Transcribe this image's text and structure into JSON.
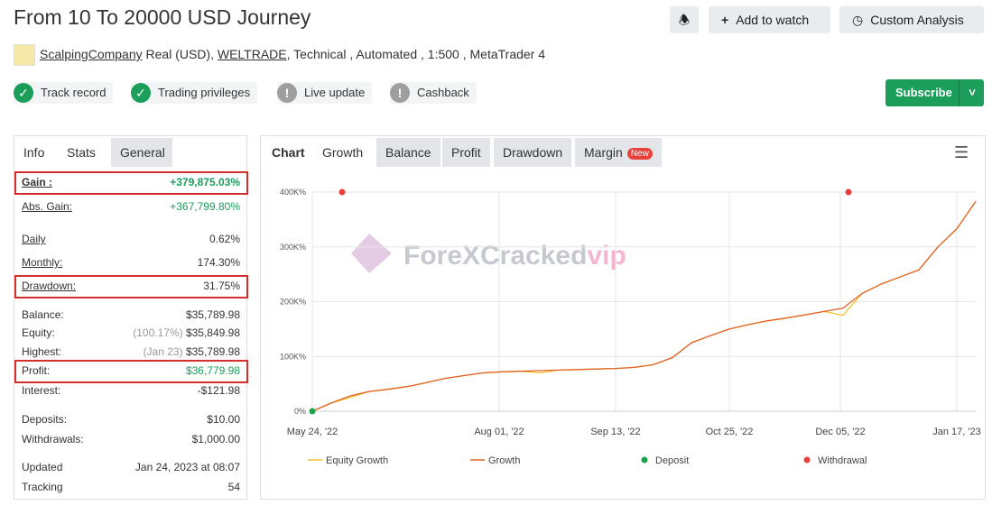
{
  "header": {
    "title": "From 10 To 20000 USD Journey",
    "buttons": [
      "Add to watch",
      "Custom Analysis"
    ]
  },
  "meta": {
    "author": "ScalpingCompany",
    "account": "Real (USD),",
    "broker": "WELTRADE",
    "details": ", Technical , Automated , 1:500 , MetaTrader 4"
  },
  "badges": [
    {
      "text": "Track record",
      "status": "ok"
    },
    {
      "text": "Trading privileges",
      "status": "ok"
    },
    {
      "text": "Live update",
      "status": "warn"
    },
    {
      "text": "Cashback",
      "status": "warn"
    }
  ],
  "subscribe": "Subscribe",
  "stats": {
    "tabs": [
      "Info",
      "Stats",
      "General"
    ],
    "rows": [
      {
        "label": "Gain :",
        "value": "+379,875.03%",
        "highlight": true
      },
      {
        "label": "Abs. Gain:",
        "value": "+367,799.80%"
      },
      {
        "label": "Daily",
        "value": "0.62%"
      },
      {
        "label": "Monthly:",
        "value": "174.30%"
      },
      {
        "label": "Drawdown:",
        "value": "31.75%",
        "highlight": true
      },
      {
        "label": "Balance:",
        "value": "$35,789.98"
      },
      {
        "label": "Equity:",
        "note": "(100.17%)",
        "value": "$35,849.98"
      },
      {
        "label": "Highest:",
        "note": "(Jan 23)",
        "value": "$35,789.98"
      },
      {
        "label": "Profit:",
        "value": "$36,779.98",
        "highlight": true
      },
      {
        "label": "Interest:",
        "value": "-$121.98"
      },
      {
        "label": "Deposits:",
        "value": "$10.00"
      },
      {
        "label": "Withdrawals:",
        "value": "$1,000.00"
      },
      {
        "label": "Updated",
        "value": "Jan 24, 2023 at 08:07"
      },
      {
        "label": "Tracking",
        "value": "54"
      }
    ]
  },
  "chart_tabs": {
    "tabs": [
      "Chart",
      "Growth",
      "Balance",
      "Profit",
      "Drawdown",
      "Margin"
    ],
    "badge": "New"
  },
  "watermark": {
    "text": "ForeXCracked",
    "accent": "vip"
  },
  "chart_data": {
    "type": "line",
    "x": [
      "May 24, '22",
      "May 31, '22",
      "Jun 07, '22",
      "Jun 14, '22",
      "Jun 21, '22",
      "Jun 28, '22",
      "Jul 05, '22",
      "Jul 12, '22",
      "Jul 19, '22",
      "Jul 26, '22",
      "Aug 02, '22",
      "Aug 09, '22",
      "Aug 16, '22",
      "Aug 23, '22",
      "Aug 30, '22",
      "Sep 06, '22",
      "Sep 13, '22",
      "Sep 20, '22",
      "Sep 27, '22",
      "Oct 04, '22",
      "Oct 11, '22",
      "Oct 18, '22",
      "Oct 25, '22",
      "Nov 01, '22",
      "Nov 08, '22",
      "Nov 15, '22",
      "Nov 22, '22",
      "Nov 29, '22",
      "Dec 06, '22",
      "Dec 13, '22",
      "Dec 20, '22",
      "Dec 27, '22",
      "Jan 03, '23",
      "Jan 10, '23",
      "Jan 17, '23",
      "Jan 24, '23"
    ],
    "series": [
      {
        "name": "Equity Growth",
        "color": "#f2c12e",
        "values": [
          0,
          15000,
          25000,
          36000,
          40000,
          45000,
          52000,
          60000,
          65000,
          70000,
          72000,
          73000,
          70000,
          75000,
          76000,
          77000,
          78000,
          80000,
          85000,
          98000,
          125000,
          138000,
          150000,
          158000,
          165000,
          170000,
          176000,
          182000,
          175000,
          215000,
          232000,
          245000,
          258000,
          300000,
          333000,
          383000
        ]
      },
      {
        "name": "Growth",
        "color": "#e0622a",
        "values": [
          0,
          15000,
          28000,
          36000,
          40000,
          45000,
          52000,
          60000,
          65000,
          70000,
          72000,
          73000,
          74000,
          75000,
          76000,
          77000,
          78000,
          80000,
          85000,
          98000,
          125000,
          138000,
          150000,
          158000,
          165000,
          170000,
          176000,
          182000,
          188000,
          215000,
          232000,
          245000,
          258000,
          300000,
          333000,
          383000
        ]
      }
    ],
    "markers": [
      {
        "name": "Deposit",
        "color": "#1aa34a",
        "x": [
          "May 24, '22"
        ]
      },
      {
        "name": "Withdrawal",
        "color": "#e8413c",
        "x": [
          "Jun 04, '22",
          "Dec 08, '22"
        ]
      }
    ],
    "xlim": [
      "May 24, '22",
      "Jan 24, '23"
    ],
    "xticks": [
      "May 24, '22",
      "Aug 01, '22",
      "Sep 13, '22",
      "Oct 25, '22",
      "Dec 05, '22",
      "Jan 17, '23"
    ],
    "ylim": [
      0,
      400000
    ],
    "yticks": [
      {
        "value": 0,
        "label": "0%"
      },
      {
        "value": 100000,
        "label": "100K%"
      },
      {
        "value": 200000,
        "label": "200K%"
      },
      {
        "value": 300000,
        "label": "300K%"
      },
      {
        "value": 400000,
        "label": "400K%"
      }
    ],
    "grid": true
  }
}
